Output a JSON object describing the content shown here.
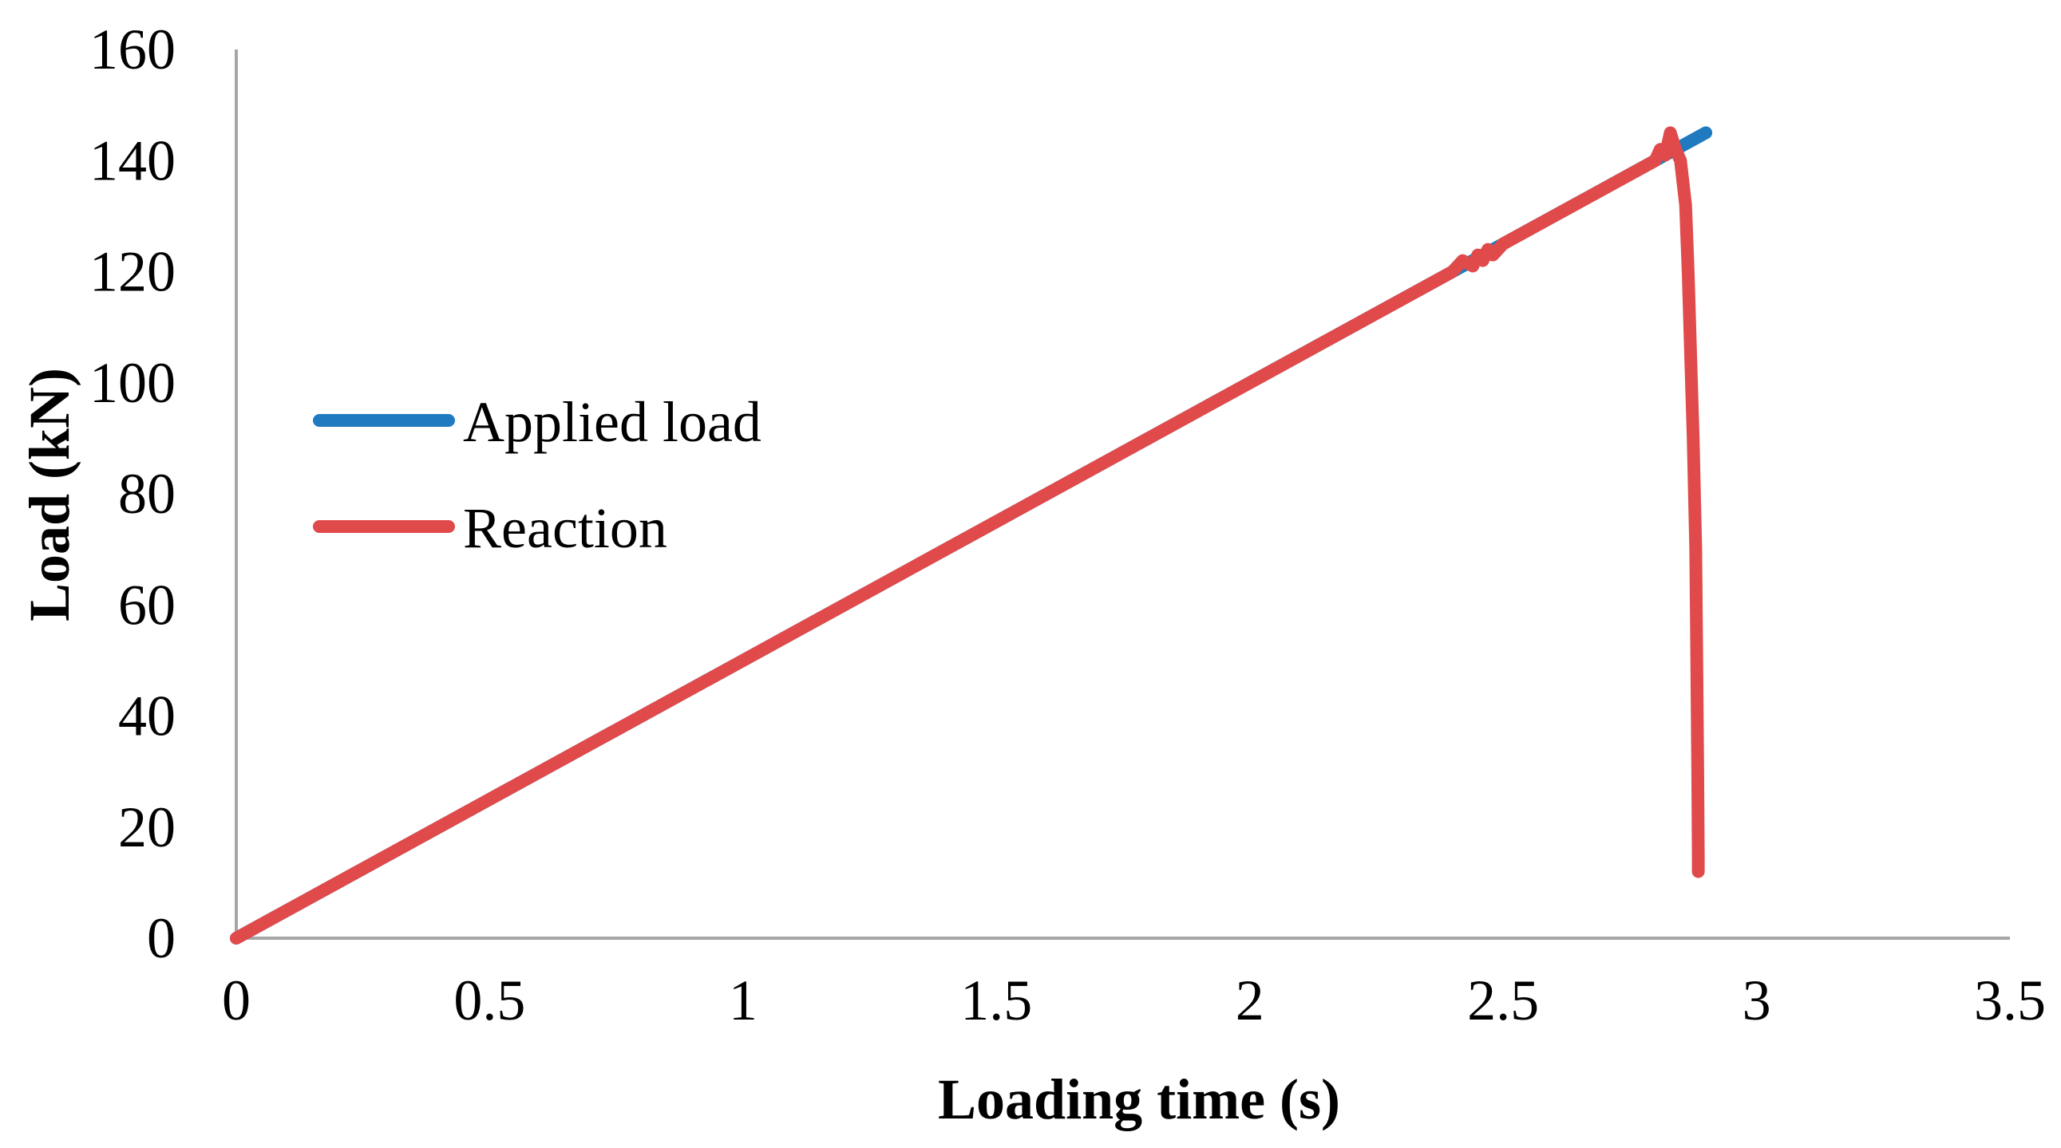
{
  "chart_data": {
    "type": "line",
    "title": "",
    "xlabel": "Loading time (s)",
    "ylabel": "Load (kN)",
    "xlim": [
      0,
      3.5
    ],
    "ylim": [
      0,
      160
    ],
    "xticks": [
      0,
      0.5,
      1,
      1.5,
      2,
      2.5,
      3,
      3.5
    ],
    "xtick_labels": [
      "0",
      "0.5",
      "1",
      "1.5",
      "2",
      "2.5",
      "3",
      "3.5"
    ],
    "yticks": [
      0,
      20,
      40,
      60,
      80,
      100,
      120,
      140,
      160
    ],
    "ytick_labels": [
      "0",
      "20",
      "40",
      "60",
      "80",
      "100",
      "120",
      "140",
      "160"
    ],
    "grid": false,
    "legend_position": "center-left",
    "series": [
      {
        "name": "Applied load",
        "color": "#1f7ac0",
        "x": [
          0,
          2.9
        ],
        "y": [
          0,
          145
        ]
      },
      {
        "name": "Reaction",
        "color": "#e04a4a",
        "x": [
          0,
          0.5,
          1.0,
          1.5,
          2.0,
          2.4,
          2.42,
          2.44,
          2.45,
          2.46,
          2.47,
          2.48,
          2.5,
          2.6,
          2.7,
          2.8,
          2.81,
          2.82,
          2.83,
          2.84,
          2.85,
          2.86,
          2.865,
          2.87,
          2.875,
          2.88,
          2.882,
          2.884,
          2.885,
          2.885
        ],
        "y": [
          0,
          25,
          50,
          75,
          100,
          120,
          122,
          121,
          123,
          122,
          124,
          123,
          125,
          130,
          135,
          140,
          142,
          141,
          145,
          142,
          140,
          132,
          120,
          105,
          90,
          70,
          50,
          30,
          15,
          12
        ]
      }
    ]
  }
}
